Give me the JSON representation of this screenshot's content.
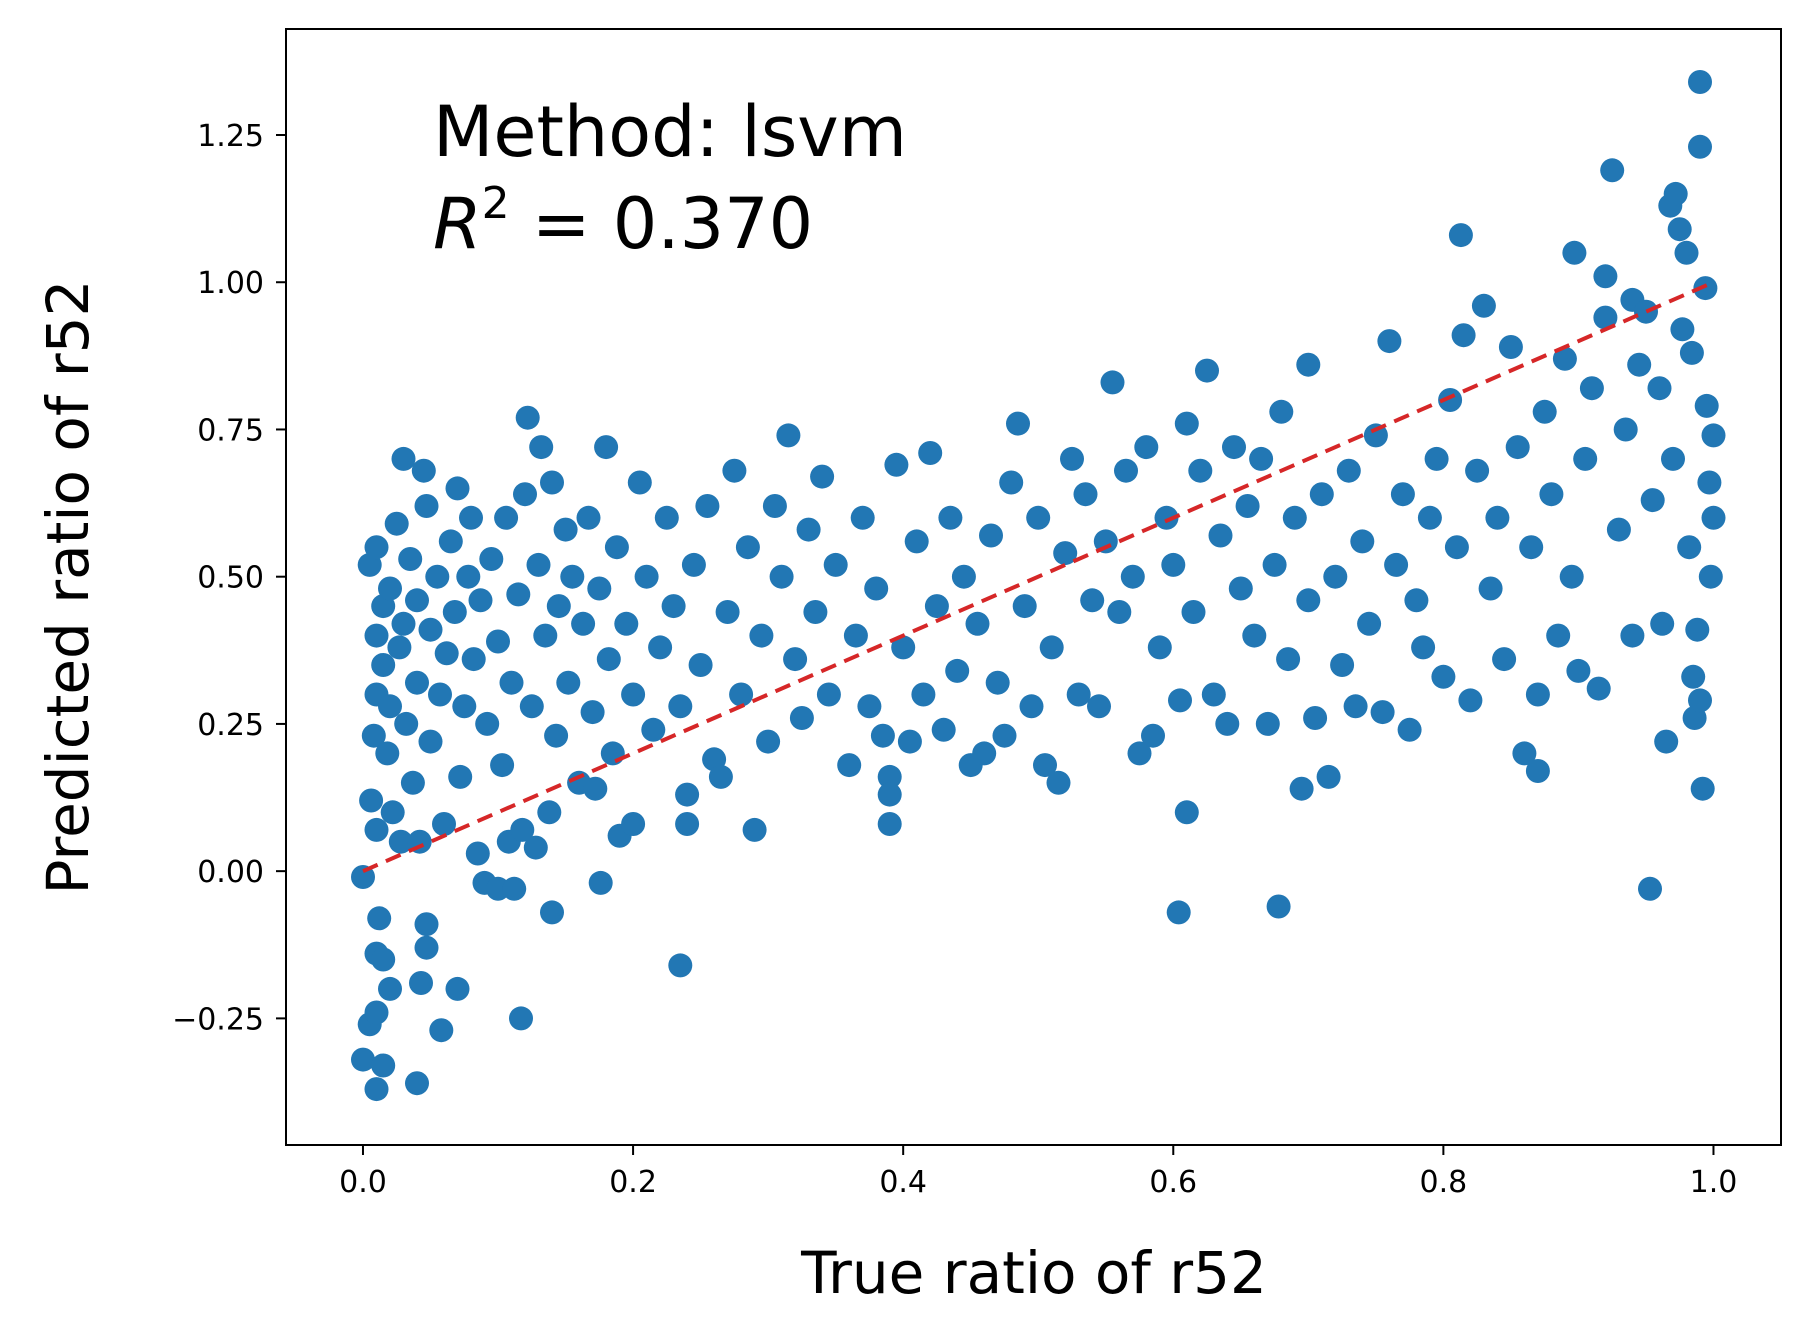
{
  "chart_data": {
    "type": "scatter",
    "annotation": {
      "line1": "Method: lsvm",
      "r2_symbol": "R",
      "r2_superscript": "2",
      "r2_value": " = 0.370"
    },
    "xlabel": "True ratio of r52",
    "ylabel": "Predicted ratio of r52",
    "xlim": [
      -0.057,
      1.05
    ],
    "ylim": [
      -0.465,
      1.43
    ],
    "xticks": [
      0.0,
      0.2,
      0.4,
      0.6,
      0.8,
      1.0
    ],
    "xtick_labels": [
      "0.0",
      "0.2",
      "0.4",
      "0.6",
      "0.8",
      "1.0"
    ],
    "yticks": [
      -0.25,
      0.0,
      0.25,
      0.5,
      0.75,
      1.0,
      1.25
    ],
    "ytick_labels": [
      "−0.25",
      "0.00",
      "0.25",
      "0.50",
      "0.75",
      "1.00",
      "1.25"
    ],
    "grid": false,
    "marker_color": "#2277b4",
    "reference_line": {
      "from": [
        0.0,
        0.0
      ],
      "to": [
        1.0,
        1.0
      ],
      "style": "dashed",
      "color": "#d62728"
    },
    "points": [
      [
        0.0,
        -0.01
      ],
      [
        0.0,
        -0.32
      ],
      [
        0.005,
        -0.26
      ],
      [
        0.01,
        -0.24
      ],
      [
        0.01,
        -0.37
      ],
      [
        0.01,
        -0.14
      ],
      [
        0.012,
        -0.08
      ],
      [
        0.015,
        -0.33
      ],
      [
        0.015,
        -0.15
      ],
      [
        0.02,
        -0.2
      ],
      [
        0.04,
        -0.36
      ],
      [
        0.043,
        -0.19
      ],
      [
        0.047,
        -0.09
      ],
      [
        0.047,
        -0.13
      ],
      [
        0.058,
        -0.27
      ],
      [
        0.07,
        -0.2
      ],
      [
        0.117,
        -0.25
      ],
      [
        0.14,
        -0.07
      ],
      [
        0.176,
        -0.02
      ],
      [
        0.235,
        -0.16
      ],
      [
        0.604,
        -0.07
      ],
      [
        0.678,
        -0.06
      ],
      [
        0.953,
        -0.03
      ],
      [
        0.005,
        0.52
      ],
      [
        0.01,
        0.55
      ],
      [
        0.01,
        0.4
      ],
      [
        0.01,
        0.3
      ],
      [
        0.008,
        0.23
      ],
      [
        0.006,
        0.12
      ],
      [
        0.01,
        0.07
      ],
      [
        0.015,
        0.45
      ],
      [
        0.015,
        0.35
      ],
      [
        0.018,
        0.2
      ],
      [
        0.02,
        0.48
      ],
      [
        0.02,
        0.28
      ],
      [
        0.022,
        0.1
      ],
      [
        0.025,
        0.59
      ],
      [
        0.027,
        0.38
      ],
      [
        0.028,
        0.05
      ],
      [
        0.03,
        0.7
      ],
      [
        0.03,
        0.42
      ],
      [
        0.032,
        0.25
      ],
      [
        0.035,
        0.53
      ],
      [
        0.037,
        0.15
      ],
      [
        0.04,
        0.46
      ],
      [
        0.04,
        0.32
      ],
      [
        0.042,
        0.05
      ],
      [
        0.045,
        0.68
      ],
      [
        0.047,
        0.62
      ],
      [
        0.05,
        0.41
      ],
      [
        0.05,
        0.22
      ],
      [
        0.055,
        0.5
      ],
      [
        0.057,
        0.3
      ],
      [
        0.06,
        0.08
      ],
      [
        0.062,
        0.37
      ],
      [
        0.065,
        0.56
      ],
      [
        0.068,
        0.44
      ],
      [
        0.07,
        0.65
      ],
      [
        0.072,
        0.16
      ],
      [
        0.075,
        0.28
      ],
      [
        0.078,
        0.5
      ],
      [
        0.08,
        0.6
      ],
      [
        0.082,
        0.36
      ],
      [
        0.085,
        0.03
      ],
      [
        0.087,
        0.46
      ],
      [
        0.09,
        -0.02
      ],
      [
        0.092,
        0.25
      ],
      [
        0.095,
        0.53
      ],
      [
        0.1,
        -0.03
      ],
      [
        0.1,
        0.39
      ],
      [
        0.103,
        0.18
      ],
      [
        0.106,
        0.6
      ],
      [
        0.108,
        0.05
      ],
      [
        0.11,
        0.32
      ],
      [
        0.112,
        -0.03
      ],
      [
        0.115,
        0.47
      ],
      [
        0.118,
        0.07
      ],
      [
        0.12,
        0.64
      ],
      [
        0.122,
        0.77
      ],
      [
        0.125,
        0.28
      ],
      [
        0.128,
        0.04
      ],
      [
        0.13,
        0.52
      ],
      [
        0.132,
        0.72
      ],
      [
        0.135,
        0.4
      ],
      [
        0.138,
        0.1
      ],
      [
        0.14,
        0.66
      ],
      [
        0.143,
        0.23
      ],
      [
        0.145,
        0.45
      ],
      [
        0.15,
        0.58
      ],
      [
        0.152,
        0.32
      ],
      [
        0.155,
        0.5
      ],
      [
        0.16,
        0.15
      ],
      [
        0.163,
        0.42
      ],
      [
        0.167,
        0.6
      ],
      [
        0.17,
        0.27
      ],
      [
        0.172,
        0.14
      ],
      [
        0.175,
        0.48
      ],
      [
        0.18,
        0.72
      ],
      [
        0.182,
        0.36
      ],
      [
        0.185,
        0.2
      ],
      [
        0.188,
        0.55
      ],
      [
        0.19,
        0.06
      ],
      [
        0.195,
        0.42
      ],
      [
        0.2,
        0.3
      ],
      [
        0.2,
        0.08
      ],
      [
        0.205,
        0.66
      ],
      [
        0.21,
        0.5
      ],
      [
        0.215,
        0.24
      ],
      [
        0.22,
        0.38
      ],
      [
        0.225,
        0.6
      ],
      [
        0.23,
        0.45
      ],
      [
        0.235,
        0.28
      ],
      [
        0.24,
        0.13
      ],
      [
        0.24,
        0.08
      ],
      [
        0.245,
        0.52
      ],
      [
        0.25,
        0.35
      ],
      [
        0.255,
        0.62
      ],
      [
        0.26,
        0.19
      ],
      [
        0.265,
        0.16
      ],
      [
        0.27,
        0.44
      ],
      [
        0.275,
        0.68
      ],
      [
        0.28,
        0.3
      ],
      [
        0.285,
        0.55
      ],
      [
        0.29,
        0.07
      ],
      [
        0.295,
        0.4
      ],
      [
        0.3,
        0.22
      ],
      [
        0.305,
        0.62
      ],
      [
        0.31,
        0.5
      ],
      [
        0.315,
        0.74
      ],
      [
        0.32,
        0.36
      ],
      [
        0.325,
        0.26
      ],
      [
        0.33,
        0.58
      ],
      [
        0.335,
        0.44
      ],
      [
        0.34,
        0.67
      ],
      [
        0.345,
        0.3
      ],
      [
        0.35,
        0.52
      ],
      [
        0.36,
        0.18
      ],
      [
        0.365,
        0.4
      ],
      [
        0.37,
        0.6
      ],
      [
        0.375,
        0.28
      ],
      [
        0.38,
        0.48
      ],
      [
        0.385,
        0.23
      ],
      [
        0.39,
        0.16
      ],
      [
        0.39,
        0.13
      ],
      [
        0.39,
        0.08
      ],
      [
        0.395,
        0.69
      ],
      [
        0.4,
        0.38
      ],
      [
        0.405,
        0.22
      ],
      [
        0.41,
        0.56
      ],
      [
        0.415,
        0.3
      ],
      [
        0.42,
        0.71
      ],
      [
        0.425,
        0.45
      ],
      [
        0.43,
        0.24
      ],
      [
        0.435,
        0.6
      ],
      [
        0.44,
        0.34
      ],
      [
        0.445,
        0.5
      ],
      [
        0.45,
        0.18
      ],
      [
        0.455,
        0.42
      ],
      [
        0.46,
        0.2
      ],
      [
        0.465,
        0.57
      ],
      [
        0.47,
        0.32
      ],
      [
        0.475,
        0.23
      ],
      [
        0.48,
        0.66
      ],
      [
        0.485,
        0.76
      ],
      [
        0.49,
        0.45
      ],
      [
        0.495,
        0.28
      ],
      [
        0.5,
        0.6
      ],
      [
        0.505,
        0.18
      ],
      [
        0.51,
        0.38
      ],
      [
        0.515,
        0.15
      ],
      [
        0.52,
        0.54
      ],
      [
        0.525,
        0.7
      ],
      [
        0.53,
        0.3
      ],
      [
        0.535,
        0.64
      ],
      [
        0.54,
        0.46
      ],
      [
        0.545,
        0.28
      ],
      [
        0.55,
        0.56
      ],
      [
        0.555,
        0.83
      ],
      [
        0.56,
        0.44
      ],
      [
        0.565,
        0.68
      ],
      [
        0.57,
        0.5
      ],
      [
        0.575,
        0.2
      ],
      [
        0.58,
        0.72
      ],
      [
        0.585,
        0.23
      ],
      [
        0.59,
        0.38
      ],
      [
        0.595,
        0.6
      ],
      [
        0.6,
        0.52
      ],
      [
        0.605,
        0.29
      ],
      [
        0.61,
        0.76
      ],
      [
        0.61,
        0.1
      ],
      [
        0.615,
        0.44
      ],
      [
        0.62,
        0.68
      ],
      [
        0.625,
        0.85
      ],
      [
        0.63,
        0.3
      ],
      [
        0.635,
        0.57
      ],
      [
        0.64,
        0.25
      ],
      [
        0.645,
        0.72
      ],
      [
        0.65,
        0.48
      ],
      [
        0.655,
        0.62
      ],
      [
        0.66,
        0.4
      ],
      [
        0.665,
        0.7
      ],
      [
        0.67,
        0.25
      ],
      [
        0.675,
        0.52
      ],
      [
        0.68,
        0.78
      ],
      [
        0.685,
        0.36
      ],
      [
        0.69,
        0.6
      ],
      [
        0.695,
        0.14
      ],
      [
        0.7,
        0.86
      ],
      [
        0.7,
        0.46
      ],
      [
        0.705,
        0.26
      ],
      [
        0.71,
        0.64
      ],
      [
        0.715,
        0.16
      ],
      [
        0.72,
        0.5
      ],
      [
        0.725,
        0.35
      ],
      [
        0.73,
        0.68
      ],
      [
        0.735,
        0.28
      ],
      [
        0.74,
        0.56
      ],
      [
        0.745,
        0.42
      ],
      [
        0.75,
        0.74
      ],
      [
        0.755,
        0.27
      ],
      [
        0.76,
        0.9
      ],
      [
        0.765,
        0.52
      ],
      [
        0.77,
        0.64
      ],
      [
        0.775,
        0.24
      ],
      [
        0.78,
        0.46
      ],
      [
        0.785,
        0.38
      ],
      [
        0.79,
        0.6
      ],
      [
        0.795,
        0.7
      ],
      [
        0.8,
        0.33
      ],
      [
        0.805,
        0.8
      ],
      [
        0.81,
        0.55
      ],
      [
        0.813,
        1.08
      ],
      [
        0.815,
        0.91
      ],
      [
        0.82,
        0.29
      ],
      [
        0.825,
        0.68
      ],
      [
        0.83,
        0.96
      ],
      [
        0.835,
        0.48
      ],
      [
        0.84,
        0.6
      ],
      [
        0.845,
        0.36
      ],
      [
        0.85,
        0.89
      ],
      [
        0.855,
        0.72
      ],
      [
        0.86,
        0.2
      ],
      [
        0.865,
        0.55
      ],
      [
        0.87,
        0.17
      ],
      [
        0.87,
        0.3
      ],
      [
        0.875,
        0.78
      ],
      [
        0.88,
        0.64
      ],
      [
        0.885,
        0.4
      ],
      [
        0.89,
        0.87
      ],
      [
        0.895,
        0.5
      ],
      [
        0.897,
        1.05
      ],
      [
        0.9,
        0.34
      ],
      [
        0.905,
        0.7
      ],
      [
        0.91,
        0.82
      ],
      [
        0.915,
        0.31
      ],
      [
        0.92,
        1.01
      ],
      [
        0.92,
        0.94
      ],
      [
        0.925,
        1.19
      ],
      [
        0.93,
        0.58
      ],
      [
        0.935,
        0.75
      ],
      [
        0.94,
        0.97
      ],
      [
        0.94,
        0.4
      ],
      [
        0.945,
        0.86
      ],
      [
        0.95,
        0.95
      ],
      [
        0.955,
        0.63
      ],
      [
        0.96,
        0.82
      ],
      [
        0.962,
        0.42
      ],
      [
        0.965,
        0.22
      ],
      [
        0.968,
        1.13
      ],
      [
        0.97,
        0.7
      ],
      [
        0.972,
        1.15
      ],
      [
        0.975,
        1.09
      ],
      [
        0.977,
        0.92
      ],
      [
        0.98,
        1.05
      ],
      [
        0.982,
        0.55
      ],
      [
        0.984,
        0.88
      ],
      [
        0.985,
        0.33
      ],
      [
        0.986,
        0.26
      ],
      [
        0.988,
        0.41
      ],
      [
        0.99,
        0.29
      ],
      [
        0.99,
        1.34
      ],
      [
        0.99,
        1.23
      ],
      [
        0.992,
        0.14
      ],
      [
        0.994,
        0.99
      ],
      [
        0.995,
        0.79
      ],
      [
        0.997,
        0.66
      ],
      [
        0.998,
        0.5
      ],
      [
        1.0,
        0.6
      ],
      [
        1.0,
        0.74
      ]
    ]
  }
}
